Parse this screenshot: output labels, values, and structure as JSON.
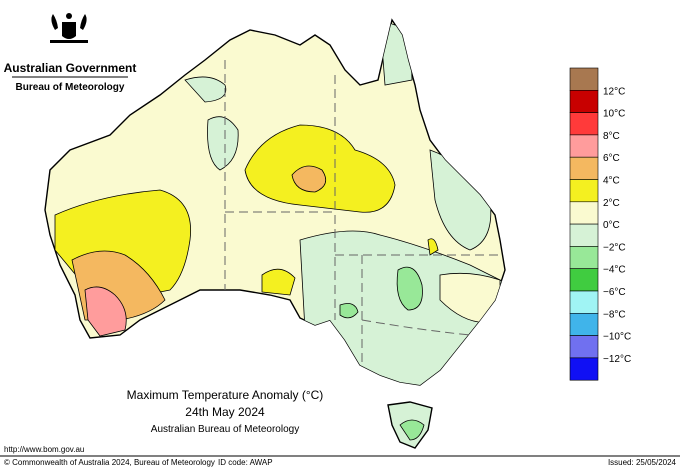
{
  "header": {
    "government": "Australian Government",
    "agency": "Bureau of Meteorology"
  },
  "legend": {
    "colors": [
      "#a87850",
      "#c80000",
      "#ff3a3a",
      "#ff9c9c",
      "#f4b860",
      "#f4f020",
      "#fafad0",
      "#d6f2d6",
      "#98e898",
      "#40cc40",
      "#a0f4f4",
      "#40b4ea",
      "#7070f0",
      "#1010f4"
    ],
    "labels": [
      "12°C",
      "10°C",
      "8°C",
      "6°C",
      "4°C",
      "2°C",
      "0°C",
      "−2°C",
      "−4°C",
      "−6°C",
      "−8°C",
      "−10°C",
      "−12°C"
    ]
  },
  "title": {
    "line1": "Maximum Temperature Anomaly (°C)",
    "line2": "24th May 2024",
    "line3": "Australian Bureau of Meteorology"
  },
  "footer": {
    "url": "http://www.bom.gov.au",
    "copyright": "© Commonwealth of Australia 2024, Bureau of Meteorology",
    "id_code": "ID code: AWAP",
    "issued": "Issued: 25/05/2024"
  }
}
